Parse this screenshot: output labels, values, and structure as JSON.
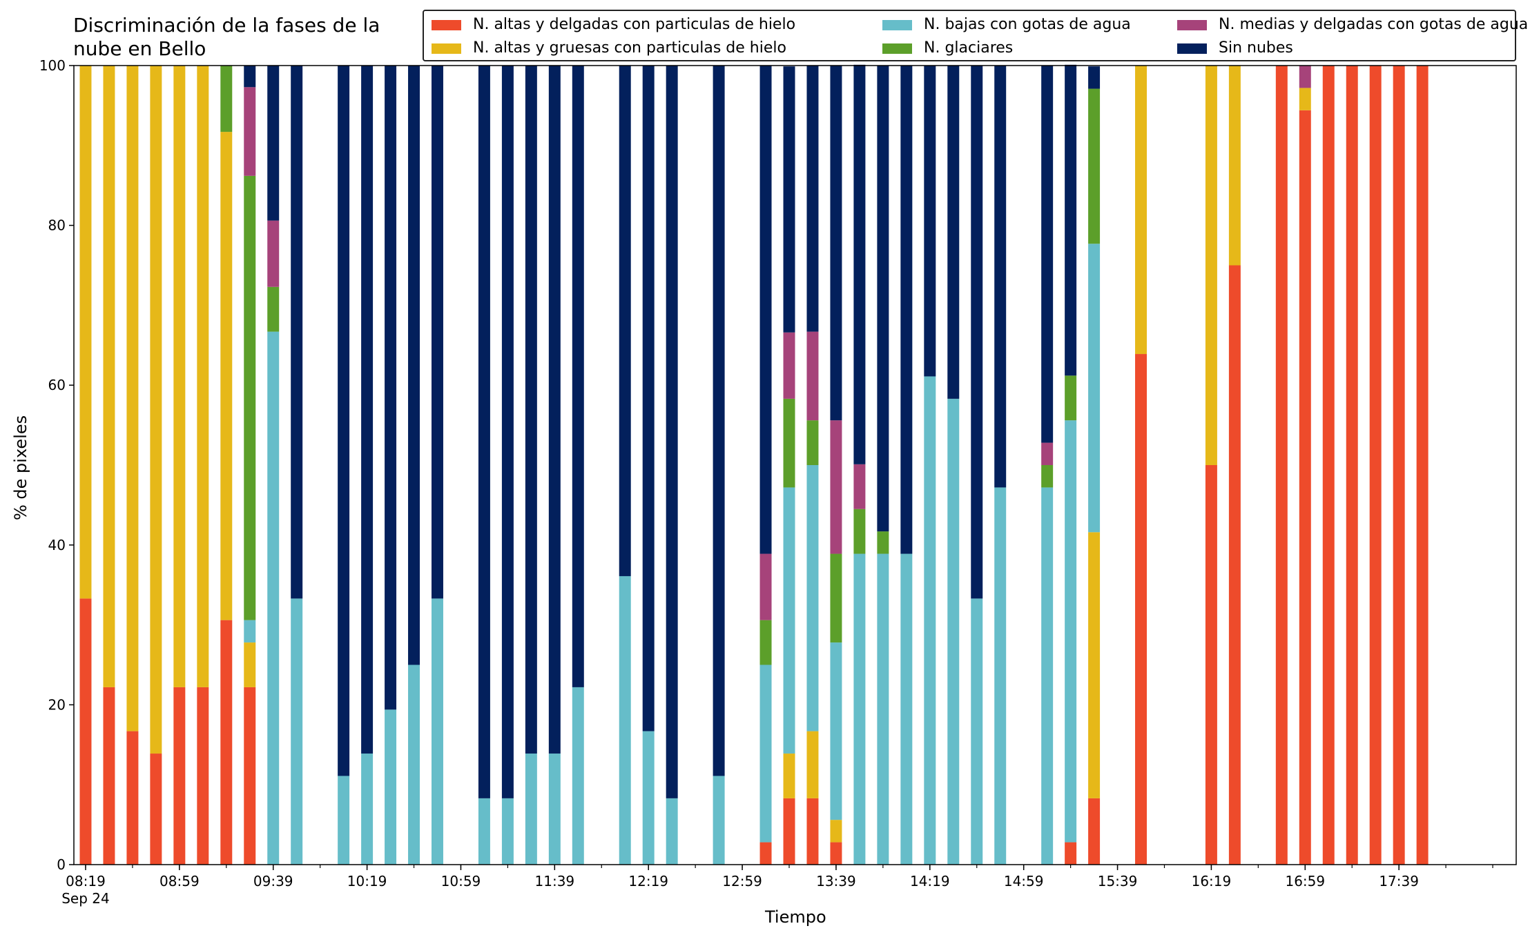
{
  "chart_data": {
    "type": "bar",
    "stacked": true,
    "title": "Discriminación de la fases de la\nnube en Bello",
    "xlabel": "Tiempo",
    "ylabel": "% de pixeles",
    "ylim": [
      0,
      100
    ],
    "yticks": [
      0,
      20,
      40,
      60,
      80,
      100
    ],
    "xlim": [
      "08:14",
      "18:29"
    ],
    "x_tick_labels": [
      "08:19",
      "08:59",
      "09:39",
      "10:19",
      "10:59",
      "11:39",
      "12:19",
      "12:59",
      "13:39",
      "14:19",
      "14:59",
      "15:39",
      "16:19",
      "16:59",
      "17:39"
    ],
    "x_tick_sublabel": "Sep 24",
    "minor_tick_interval_minutes": 20,
    "bar_interval_minutes": 10,
    "legend_placement": "top-right",
    "legend_columns": 3,
    "grid": false,
    "categories": [
      "08:19",
      "08:29",
      "08:39",
      "08:49",
      "08:59",
      "09:09",
      "09:19",
      "09:29",
      "09:39",
      "09:49",
      "10:09",
      "10:19",
      "10:29",
      "10:39",
      "10:49",
      "11:09",
      "11:19",
      "11:29",
      "11:39",
      "11:49",
      "12:09",
      "12:19",
      "12:29",
      "12:49",
      "13:09",
      "13:19",
      "13:29",
      "13:39",
      "13:49",
      "13:59",
      "14:09",
      "14:19",
      "14:29",
      "14:39",
      "14:49",
      "15:09",
      "15:19",
      "15:29",
      "15:49",
      "16:19",
      "16:29",
      "16:49",
      "16:59",
      "17:09",
      "17:19",
      "17:29",
      "17:39",
      "17:49"
    ],
    "series": [
      {
        "name": "N. altas y delgadas con particulas de hielo",
        "color": "#ee4b2b",
        "values": [
          33.3,
          22.2,
          16.7,
          13.9,
          22.2,
          22.2,
          30.6,
          22.2,
          0,
          0,
          0,
          0,
          0,
          0,
          0,
          0,
          0,
          0,
          0,
          0,
          0,
          0,
          0,
          0,
          2.8,
          8.3,
          8.3,
          2.8,
          0,
          0,
          0,
          0,
          0,
          0,
          0,
          0,
          2.8,
          8.3,
          63.9,
          50.0,
          75.0,
          100,
          94.4,
          100,
          100,
          100,
          100,
          100
        ]
      },
      {
        "name": "N. altas y gruesas con particulas de hielo",
        "color": "#e6b819",
        "values": [
          66.7,
          77.8,
          83.3,
          86.1,
          77.8,
          77.8,
          61.1,
          5.6,
          0,
          0,
          0,
          0,
          0,
          0,
          0,
          0,
          0,
          0,
          0,
          0,
          0,
          0,
          0,
          0,
          0,
          5.6,
          8.4,
          2.8,
          0,
          0,
          0,
          0,
          0,
          0,
          0,
          0,
          0,
          33.3,
          36.1,
          50.0,
          25.0,
          0,
          2.8,
          0,
          0,
          0,
          0,
          0
        ]
      },
      {
        "name": "N. bajas con gotas de agua",
        "color": "#66bdc9",
        "values": [
          0,
          0,
          0,
          0,
          0,
          0,
          0,
          2.8,
          66.7,
          33.3,
          11.1,
          13.9,
          19.4,
          25.0,
          33.3,
          8.3,
          8.3,
          13.9,
          13.9,
          22.2,
          36.1,
          16.7,
          8.3,
          11.1,
          22.2,
          33.3,
          33.3,
          22.2,
          38.9,
          38.9,
          38.9,
          61.1,
          58.3,
          33.3,
          47.2,
          47.2,
          52.8,
          36.1,
          0,
          0,
          0,
          0,
          0,
          0,
          0,
          0,
          0,
          0
        ]
      },
      {
        "name": "N. glaciares",
        "color": "#5c9f2a",
        "values": [
          0,
          0,
          0,
          0,
          0,
          0,
          8.3,
          55.6,
          5.6,
          0,
          0,
          0,
          0,
          0,
          0,
          0,
          0,
          0,
          0,
          0,
          0,
          0,
          0,
          0,
          5.6,
          11.1,
          5.6,
          11.1,
          5.6,
          2.8,
          0,
          0,
          0,
          0,
          0,
          2.8,
          5.6,
          19.4,
          0,
          0,
          0,
          0,
          0,
          0,
          0,
          0,
          0,
          0
        ]
      },
      {
        "name": "N. medias y delgadas con gotas de agua",
        "color": "#a6437a",
        "values": [
          0,
          0,
          0,
          0,
          0,
          0,
          0,
          11.1,
          8.3,
          0,
          0,
          0,
          0,
          0,
          0,
          0,
          0,
          0,
          0,
          0,
          0,
          0,
          0,
          0,
          8.3,
          8.3,
          11.1,
          16.7,
          5.6,
          0,
          0,
          0,
          0,
          0,
          0,
          2.8,
          0,
          0,
          0,
          0,
          0,
          0,
          2.8,
          0,
          0,
          0,
          0,
          0
        ]
      },
      {
        "name": "Sin nubes",
        "color": "#03205c",
        "values": [
          0,
          0,
          0,
          0,
          0,
          0,
          0,
          2.7,
          19.4,
          66.7,
          88.9,
          86.1,
          80.6,
          75.0,
          66.7,
          91.7,
          91.7,
          86.1,
          86.1,
          77.8,
          63.9,
          83.3,
          91.7,
          88.9,
          61.1,
          33.3,
          33.3,
          44.4,
          50.0,
          58.3,
          61.1,
          38.9,
          41.7,
          66.7,
          52.8,
          47.2,
          38.9,
          2.8,
          0,
          0,
          0,
          0,
          0,
          0,
          0,
          0,
          0,
          0
        ]
      }
    ]
  }
}
